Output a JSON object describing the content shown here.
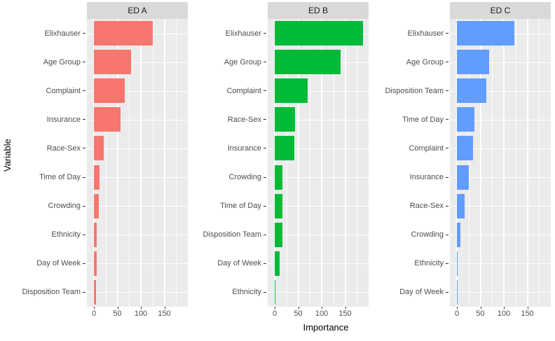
{
  "chart_data": {
    "type": "bar",
    "orientation": "horizontal",
    "xlabel": "Importance",
    "ylabel": "Variable",
    "x_ticks": [
      0,
      50,
      100,
      150
    ],
    "x_minor_gridlines": [
      25,
      75,
      125,
      175
    ],
    "xlim": [
      -15,
      200
    ],
    "panel_bg": "#EBEBEB",
    "strip_bg": "#D9D9D9",
    "grid_color": "#FFFFFF",
    "legend_position": "none",
    "facets": [
      {
        "label": "ED A",
        "color": "#F8766D",
        "categories": [
          "Elixhauser",
          "Age Group",
          "Complaint",
          "Insurance",
          "Race-Sex",
          "Time of Day",
          "Crowding",
          "Ethnicity",
          "Day of Week",
          "Disposition Team"
        ],
        "values": [
          125,
          79,
          65,
          57,
          21,
          12,
          10,
          6,
          6,
          4
        ]
      },
      {
        "label": "ED B",
        "color": "#00BA38",
        "categories": [
          "Elixhauser",
          "Age Group",
          "Complaint",
          "Race-Sex",
          "Insurance",
          "Crowding",
          "Time of Day",
          "Disposition Team",
          "Day of Week",
          "Ethnicity"
        ],
        "values": [
          188,
          141,
          70,
          43,
          42,
          16,
          16,
          16,
          11,
          1.5
        ]
      },
      {
        "label": "ED C",
        "color": "#619CFF",
        "categories": [
          "Elixhauser",
          "Age Group",
          "Disposition Team",
          "Time of Day",
          "Complaint",
          "Insurance",
          "Race-Sex",
          "Crowding",
          "Ethnicity",
          "Day of Week"
        ],
        "values": [
          123,
          69,
          62,
          37,
          34,
          25,
          16,
          8,
          1,
          1
        ]
      }
    ]
  }
}
